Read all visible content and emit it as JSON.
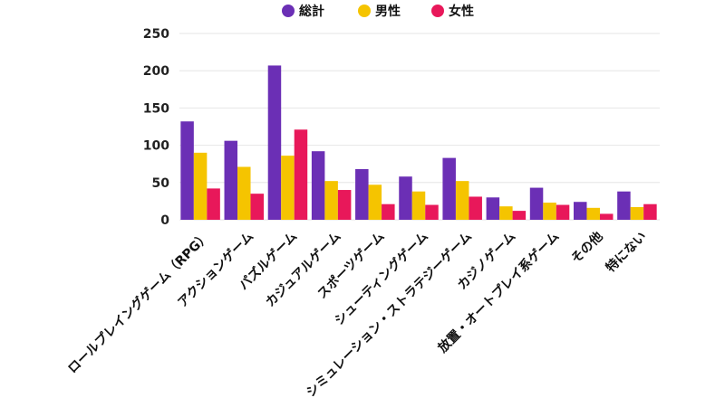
{
  "chart_data": {
    "type": "bar",
    "title": "",
    "xlabel": "",
    "ylabel": "",
    "ylim": [
      0,
      250
    ],
    "yticks": [
      0,
      50,
      100,
      150,
      200,
      250
    ],
    "grid": true,
    "legend_position": "top-center",
    "categories": [
      "ロールプレイングゲーム（RPG）",
      "アクションゲーム",
      "パズルゲーム",
      "カジュアルゲーム",
      "スポーツゲーム",
      "シューティングゲーム",
      "シミュレーション・ストラテジーゲーム",
      "カジノゲーム",
      "放置・オートプレイ系ゲーム",
      "その他",
      "特にない"
    ],
    "series": [
      {
        "name": "総計",
        "color": "#6b2fb5",
        "values": [
          132,
          106,
          207,
          92,
          68,
          58,
          83,
          30,
          43,
          24,
          38
        ]
      },
      {
        "name": "男性",
        "color": "#f5c400",
        "values": [
          90,
          71,
          86,
          52,
          47,
          38,
          52,
          18,
          23,
          16,
          17
        ]
      },
      {
        "name": "女性",
        "color": "#e8185a",
        "values": [
          42,
          35,
          121,
          40,
          21,
          20,
          31,
          12,
          20,
          8,
          21
        ]
      }
    ]
  }
}
